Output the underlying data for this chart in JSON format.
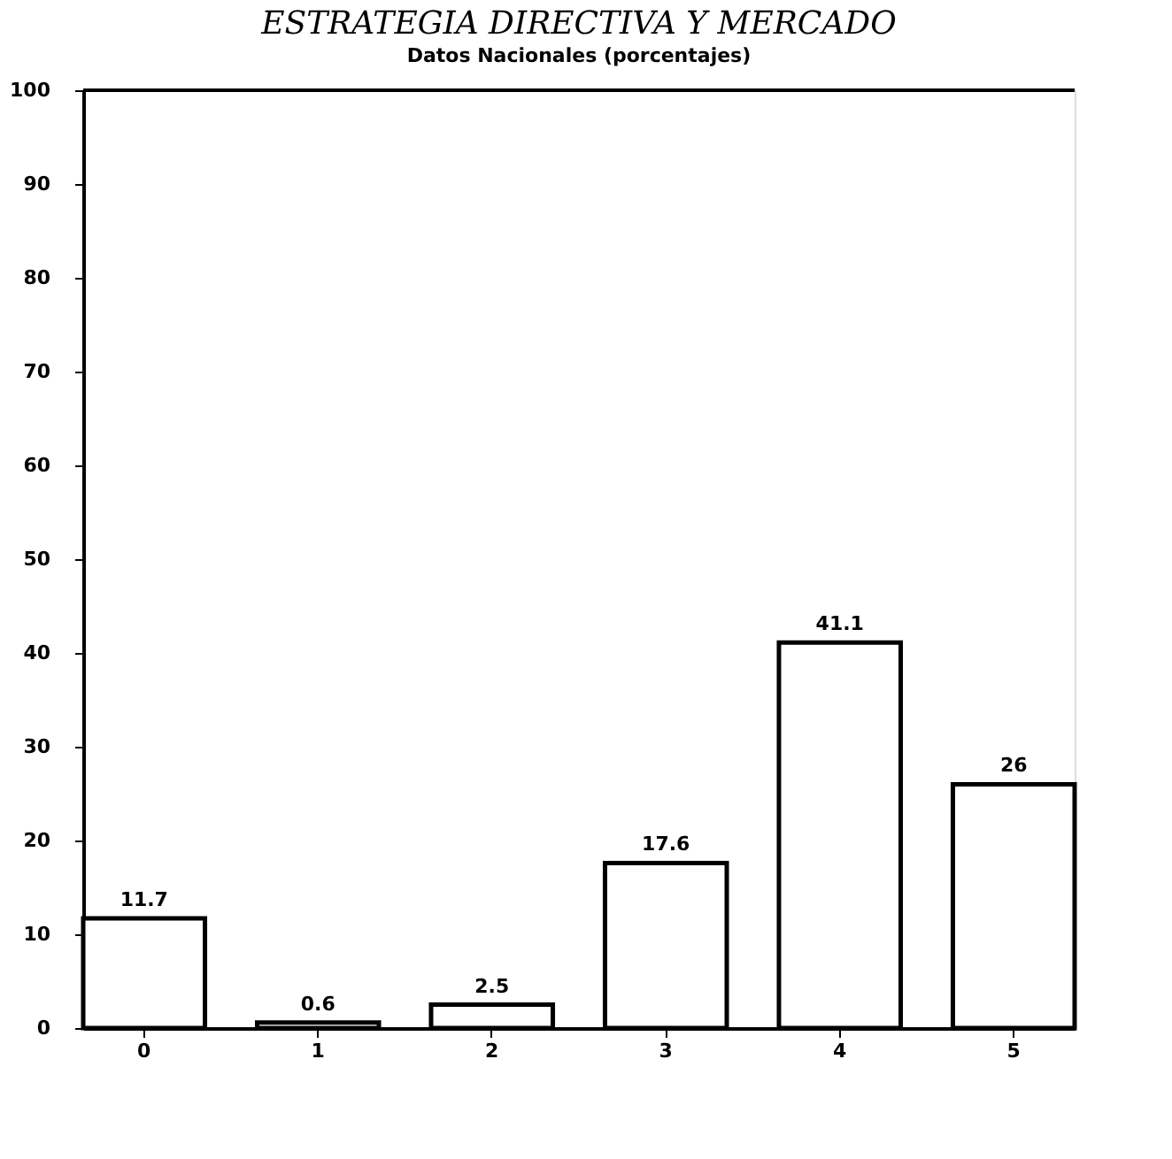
{
  "chart_data": {
    "type": "bar",
    "title": "ESTRATEGIA DIRECTIVA Y MERCADO",
    "subtitle": "Datos Nacionales (porcentajes)",
    "categories": [
      "0",
      "1",
      "2",
      "3",
      "4",
      "5"
    ],
    "values": [
      11.7,
      0.6,
      2.5,
      17.6,
      41.1,
      26
    ],
    "color": "#ffffff",
    "ylim": [
      0,
      100
    ],
    "yticks": [
      0,
      10,
      20,
      30,
      40,
      50,
      60,
      70,
      80,
      90,
      100
    ],
    "data_labels": true,
    "grid": false
  }
}
